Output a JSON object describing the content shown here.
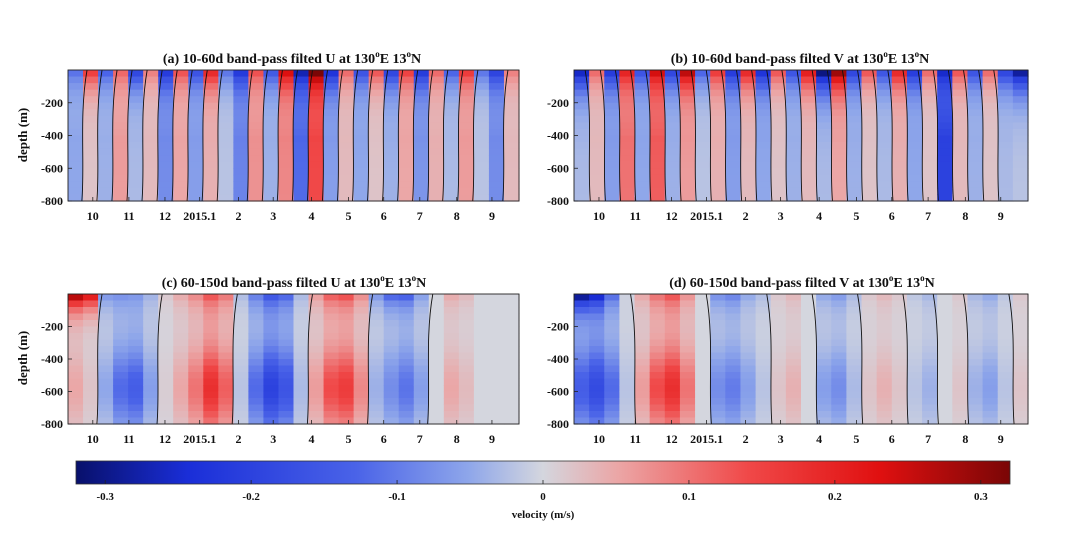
{
  "chart_data": [
    {
      "type": "heatmap",
      "title_prefix": "(a) 10-60d band-pass filted U at 130",
      "title_sup1": "o",
      "title_mid": "E 13",
      "title_sup2": "o",
      "title_suffix": "N",
      "ylabel": "depth (m)",
      "yticks": [
        "-200",
        "-400",
        "-600",
        "-800"
      ],
      "xticks": [
        "10",
        "11",
        "12",
        "2015.1",
        "2",
        "3",
        "4",
        "5",
        "6",
        "7",
        "8",
        "9"
      ],
      "ylim": [
        -800,
        0
      ],
      "band": "10-60d",
      "component": "U",
      "columns": [
        -0.05,
        0.02,
        -0.04,
        0.06,
        -0.03,
        0.03,
        -0.08,
        0.05,
        -0.06,
        0.04,
        -0.02,
        -0.09,
        0.07,
        -0.04,
        0.08,
        -0.12,
        0.14,
        -0.06,
        0.03,
        -0.05,
        0.02,
        -0.04,
        0.05,
        -0.07,
        0.04,
        -0.03,
        0.06,
        -0.02,
        -0.08,
        0.03
      ],
      "surface": [
        -0.1,
        0.15,
        -0.12,
        0.1,
        -0.18,
        0.08,
        -0.2,
        0.12,
        -0.15,
        0.18,
        -0.1,
        -0.2,
        0.12,
        -0.14,
        0.22,
        -0.25,
        0.3,
        -0.22,
        0.1,
        -0.15,
        0.12,
        -0.18,
        0.14,
        -0.2,
        0.1,
        -0.12,
        0.15,
        -0.1,
        -0.18,
        0.08
      ]
    },
    {
      "type": "heatmap",
      "title_prefix": "(b) 10-60d band-pass filted V at 130",
      "title_sup1": "o",
      "title_mid": "E 13",
      "title_sup2": "o",
      "title_suffix": "N",
      "ylabel": "",
      "yticks": [
        "-200",
        "-400",
        "-600",
        "-800"
      ],
      "xticks": [
        "10",
        "11",
        "12",
        "2015.1",
        "2",
        "3",
        "4",
        "5",
        "6",
        "7",
        "8",
        "9"
      ],
      "ylim": [
        -800,
        0
      ],
      "band": "10-60d",
      "component": "V",
      "columns": [
        -0.03,
        0.03,
        -0.06,
        0.1,
        -0.05,
        0.12,
        -0.04,
        0.06,
        -0.02,
        0.04,
        -0.06,
        0.03,
        -0.05,
        0.02,
        -0.04,
        0.03,
        -0.03,
        0.05,
        -0.04,
        0.02,
        -0.03,
        0.04,
        -0.05,
        0.02,
        -0.2,
        0.03,
        -0.04,
        0.02,
        -0.03,
        -0.02
      ],
      "surface": [
        -0.25,
        0.1,
        -0.2,
        0.18,
        -0.15,
        0.22,
        -0.18,
        0.25,
        -0.12,
        0.15,
        -0.2,
        0.18,
        -0.22,
        0.12,
        -0.15,
        0.2,
        -0.3,
        0.28,
        -0.18,
        0.12,
        -0.15,
        0.18,
        -0.2,
        0.1,
        -0.22,
        0.12,
        -0.15,
        0.1,
        -0.18,
        -0.28
      ]
    },
    {
      "type": "heatmap",
      "title_prefix": "(c) 60-150d band-pass filted U at 130",
      "title_sup1": "o",
      "title_mid": "E 13",
      "title_sup2": "o",
      "title_suffix": "N",
      "ylabel": "depth (m)",
      "yticks": [
        "-200",
        "-400",
        "-600",
        "-800"
      ],
      "xticks": [
        "10",
        "11",
        "12",
        "2015.1",
        "2",
        "3",
        "4",
        "5",
        "6",
        "7",
        "8",
        "9"
      ],
      "ylim": [
        -800,
        0
      ],
      "band": "60-150d",
      "component": "U",
      "columns": [
        0.05,
        0.02,
        -0.05,
        -0.12,
        -0.14,
        -0.06,
        0.01,
        0.05,
        0.1,
        0.18,
        0.12,
        -0.02,
        -0.12,
        -0.2,
        -0.16,
        -0.03,
        0.06,
        0.14,
        0.16,
        0.08,
        -0.04,
        -0.08,
        -0.11,
        -0.06,
        0.0,
        0.05,
        0.03,
        0.0,
        0.0,
        0.0
      ],
      "surface": [
        0.25,
        0.2,
        -0.05,
        -0.04,
        -0.03,
        -0.02,
        0.01,
        0.03,
        0.05,
        0.08,
        0.06,
        -0.02,
        -0.06,
        -0.1,
        -0.08,
        -0.02,
        0.04,
        0.08,
        0.09,
        0.05,
        -0.05,
        -0.1,
        -0.1,
        -0.04,
        0.0,
        0.03,
        0.02,
        0.0,
        0.0,
        0.0
      ]
    },
    {
      "type": "heatmap",
      "title_prefix": "(d) 60-150d band-pass filted V at 130",
      "title_sup1": "o",
      "title_mid": "E 13",
      "title_sup2": "o",
      "title_suffix": "N",
      "ylabel": "",
      "yticks": [
        "-200",
        "-400",
        "-600",
        "-800"
      ],
      "xticks": [
        "10",
        "11",
        "12",
        "2015.1",
        "2",
        "3",
        "4",
        "5",
        "6",
        "7",
        "8",
        "9"
      ],
      "ylim": [
        -800,
        0
      ],
      "band": "60-150d",
      "component": "V",
      "columns": [
        -0.14,
        -0.18,
        -0.12,
        -0.02,
        0.06,
        0.14,
        0.18,
        0.1,
        0.0,
        -0.08,
        -0.1,
        -0.06,
        -0.02,
        0.02,
        0.04,
        0.0,
        -0.06,
        -0.08,
        -0.03,
        0.02,
        0.04,
        0.02,
        -0.02,
        -0.04,
        0.0,
        0.02,
        -0.04,
        -0.06,
        -0.02,
        0.02
      ],
      "surface": [
        -0.25,
        -0.2,
        -0.08,
        0.0,
        0.03,
        0.06,
        0.08,
        0.04,
        0.0,
        -0.05,
        -0.06,
        -0.03,
        -0.02,
        0.01,
        0.02,
        0.0,
        -0.03,
        -0.04,
        -0.02,
        0.01,
        0.02,
        0.01,
        -0.01,
        -0.02,
        0.0,
        0.01,
        -0.02,
        -0.03,
        -0.01,
        0.01
      ]
    }
  ],
  "colorbar": {
    "label": "velocity (m/s)",
    "range": [
      -0.32,
      0.32
    ],
    "ticks": [
      "-0.3",
      "-0.2",
      "-0.1",
      "0",
      "0.1",
      "0.2",
      "0.3"
    ],
    "tick_values": [
      -0.3,
      -0.2,
      -0.1,
      0,
      0.1,
      0.2,
      0.3
    ],
    "colormap": [
      "#08106b",
      "#1a2ed8",
      "#4a63e8",
      "#8ea6ea",
      "#d4d6de",
      "#eba6a6",
      "#f04848",
      "#e01010",
      "#7a0606"
    ]
  }
}
